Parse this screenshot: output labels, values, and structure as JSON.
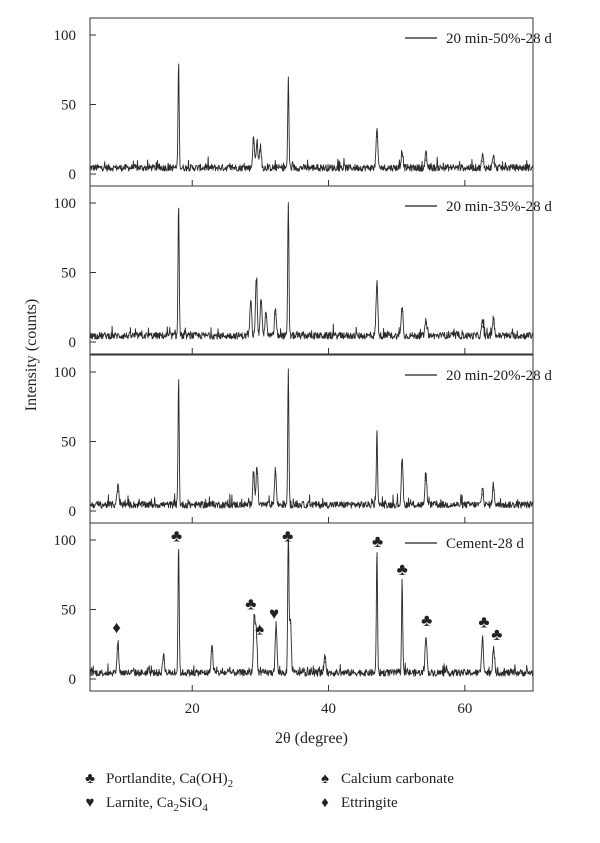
{
  "chart_data": {
    "type": "line",
    "xlabel": "2θ (degree)",
    "ylabel": "Intensity (counts)",
    "xlim": [
      5,
      70
    ],
    "ylim": [
      0,
      110
    ],
    "x_ticks": [
      "20",
      "40",
      "60"
    ],
    "y_ticks": [
      "0",
      "50",
      "100"
    ],
    "legend_placement": "top-right",
    "panels": [
      {
        "name": "20 min-50%-28 d",
        "peaks": [
          {
            "x": 18.0,
            "y": 75
          },
          {
            "x": 29.0,
            "y": 22
          },
          {
            "x": 29.5,
            "y": 20
          },
          {
            "x": 30.0,
            "y": 16
          },
          {
            "x": 34.1,
            "y": 65
          },
          {
            "x": 47.1,
            "y": 27
          },
          {
            "x": 50.8,
            "y": 13
          },
          {
            "x": 54.3,
            "y": 10
          },
          {
            "x": 62.6,
            "y": 9
          },
          {
            "x": 64.2,
            "y": 8
          }
        ]
      },
      {
        "name": "20 min-35%-28 d",
        "peaks": [
          {
            "x": 18.0,
            "y": 95
          },
          {
            "x": 28.6,
            "y": 28
          },
          {
            "x": 29.4,
            "y": 42
          },
          {
            "x": 30.1,
            "y": 28
          },
          {
            "x": 30.8,
            "y": 18
          },
          {
            "x": 32.2,
            "y": 20
          },
          {
            "x": 34.1,
            "y": 97
          },
          {
            "x": 47.1,
            "y": 39
          },
          {
            "x": 50.8,
            "y": 22
          },
          {
            "x": 54.3,
            "y": 13
          },
          {
            "x": 62.6,
            "y": 11
          },
          {
            "x": 64.2,
            "y": 13
          }
        ]
      },
      {
        "name": "20 min-20%-28 d",
        "peaks": [
          {
            "x": 9.1,
            "y": 14
          },
          {
            "x": 18.0,
            "y": 89
          },
          {
            "x": 29.0,
            "y": 25
          },
          {
            "x": 29.5,
            "y": 27
          },
          {
            "x": 32.2,
            "y": 26
          },
          {
            "x": 34.1,
            "y": 96
          },
          {
            "x": 47.1,
            "y": 56
          },
          {
            "x": 50.8,
            "y": 33
          },
          {
            "x": 54.3,
            "y": 22
          },
          {
            "x": 62.6,
            "y": 12
          },
          {
            "x": 64.2,
            "y": 15
          }
        ]
      },
      {
        "name": "Cement-28 d",
        "peaks": [
          {
            "x": 9.1,
            "y": 22
          },
          {
            "x": 15.8,
            "y": 14
          },
          {
            "x": 18.0,
            "y": 93
          },
          {
            "x": 22.9,
            "y": 20
          },
          {
            "x": 29.1,
            "y": 41
          },
          {
            "x": 29.4,
            "y": 30
          },
          {
            "x": 32.3,
            "y": 35
          },
          {
            "x": 34.1,
            "y": 103
          },
          {
            "x": 34.4,
            "y": 40
          },
          {
            "x": 39.5,
            "y": 12
          },
          {
            "x": 47.1,
            "y": 87
          },
          {
            "x": 50.8,
            "y": 67
          },
          {
            "x": 54.3,
            "y": 28
          },
          {
            "x": 62.6,
            "y": 27
          },
          {
            "x": 64.2,
            "y": 19
          }
        ]
      }
    ],
    "annotations": [
      {
        "symbol": "♦",
        "x": 8.9,
        "y": 33
      },
      {
        "symbol": "♣",
        "x": 17.7,
        "y": 99
      },
      {
        "symbol": "♣",
        "x": 28.6,
        "y": 50
      },
      {
        "symbol": "♠",
        "x": 29.9,
        "y": 32
      },
      {
        "symbol": "♥",
        "x": 32.0,
        "y": 43
      },
      {
        "symbol": "♣",
        "x": 34.0,
        "y": 99
      },
      {
        "symbol": "♣",
        "x": 47.2,
        "y": 95
      },
      {
        "symbol": "♣",
        "x": 50.8,
        "y": 75
      },
      {
        "symbol": "♣",
        "x": 54.4,
        "y": 38
      },
      {
        "symbol": "♣",
        "x": 62.8,
        "y": 37
      },
      {
        "symbol": "♣",
        "x": 64.7,
        "y": 28
      }
    ]
  },
  "legend": {
    "items": [
      {
        "symbol": "♣",
        "label": "Portlandite, Ca(OH)",
        "sub": "2"
      },
      {
        "symbol": "♠",
        "label": "Calcium carbonate",
        "sub": ""
      },
      {
        "symbol": "♥",
        "label": "Larnite, Ca",
        "sub": "2",
        "tail": "SiO",
        "sub2": "4"
      },
      {
        "symbol": "♦",
        "label": "Ettringite",
        "sub": ""
      }
    ]
  }
}
